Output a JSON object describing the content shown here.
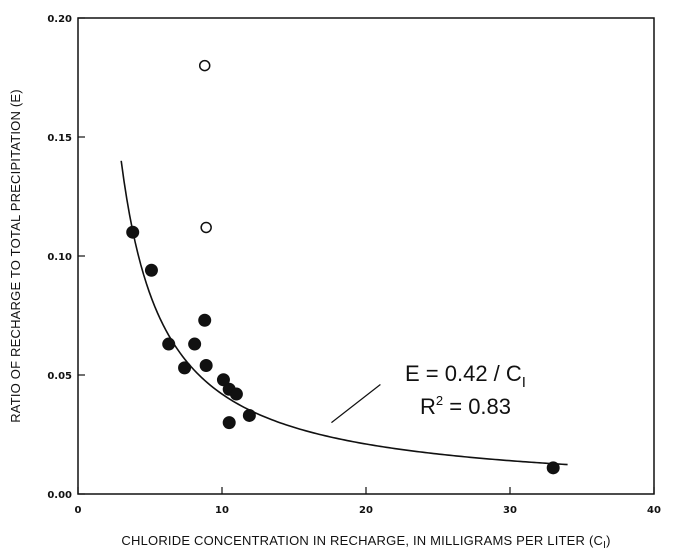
{
  "chart_data": {
    "type": "scatter",
    "title": "",
    "xlabel": "CHLORIDE CONCENTRATION IN RECHARGE, IN MILLIGRAMS PER LITER (C",
    "xlabel_sub": "I",
    "xlabel_close": ")",
    "ylabel": "RATIO OF RECHARGE TO TOTAL PRECIPITATION (E)",
    "xlim": [
      0,
      40
    ],
    "ylim": [
      0,
      0.2
    ],
    "xticks": [
      0,
      10,
      20,
      30,
      40
    ],
    "xtick_labels": [
      "0",
      "10",
      "20",
      "30",
      "40"
    ],
    "yticks": [
      0,
      0.05,
      0.1,
      0.15,
      0.2
    ],
    "ytick_labels": [
      "0.00",
      "0.05",
      "0.10",
      "0.15",
      "0.20"
    ],
    "grid": false,
    "series": [
      {
        "marker": "filled-circle",
        "x": [
          3.8,
          5.1,
          6.3,
          7.4,
          8.1,
          8.8,
          8.9,
          10.1,
          10.5,
          10.5,
          11.0,
          11.9,
          33.0
        ],
        "y": [
          0.11,
          0.094,
          0.063,
          0.053,
          0.063,
          0.073,
          0.054,
          0.048,
          0.044,
          0.03,
          0.042,
          0.033,
          0.011
        ]
      },
      {
        "marker": "open-circle",
        "x": [
          8.8,
          8.9
        ],
        "y": [
          0.18,
          0.112
        ]
      }
    ],
    "fit": {
      "coefficient": 0.42,
      "x_range": [
        3.0,
        34.0
      ]
    },
    "annotation": {
      "eq_prefix": "E = 0.42 / C",
      "eq_sub": "I",
      "r2_prefix": "R",
      "r2_sup": "2",
      "r2_suffix": " = 0.83",
      "pointer_from": [
        21.0,
        0.046
      ],
      "pointer_to": [
        17.6,
        0.03
      ]
    }
  }
}
